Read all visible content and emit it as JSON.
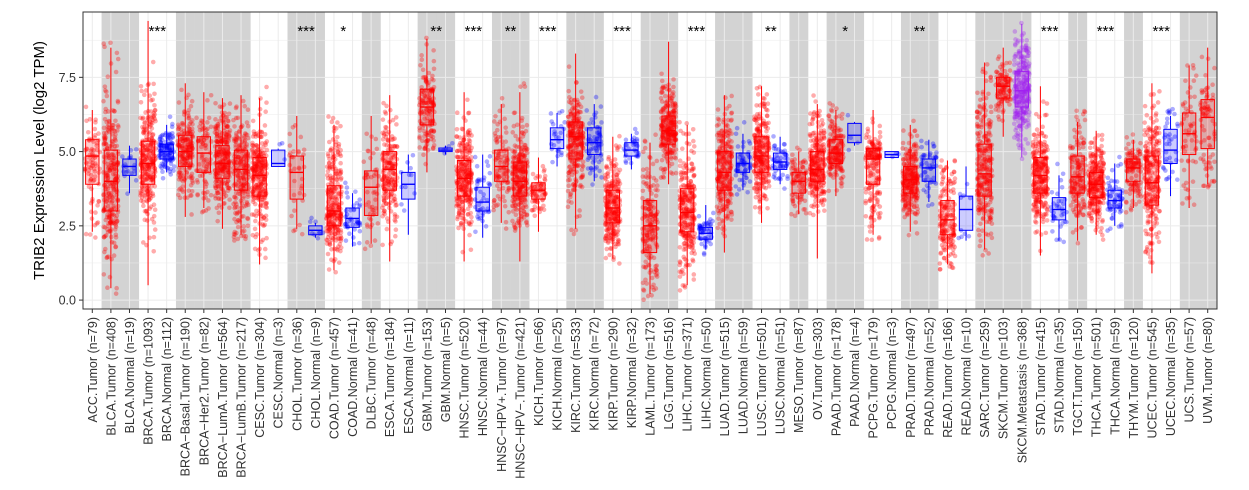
{
  "chart_data": {
    "type": "box",
    "title": "",
    "xlabel": "",
    "ylabel": "TRIB2 Expression Level (log2 TPM)",
    "ylim": [
      -0.3,
      9.7
    ],
    "yticks": [
      0.0,
      2.5,
      5.0,
      7.5
    ],
    "ytick_labels": [
      "0.0",
      "2.5",
      "5.0",
      "7.5"
    ],
    "grid": true,
    "legend": "none",
    "colors": {
      "Tumor": "#ff0000",
      "Normal": "#0000ff",
      "Metastasis": "#a020f0",
      "shade": "#d3d3d3"
    },
    "categories": [
      {
        "label": "ACC.Tumor (n=79)",
        "group": "Tumor",
        "median": 4.85,
        "q1": 3.9,
        "q3": 5.4,
        "lo": 2.3,
        "hi": 6.4,
        "shade": false,
        "sig": ""
      },
      {
        "label": "BLCA.Tumor (n=408)",
        "group": "Tumor",
        "median": 4.0,
        "q1": 3.0,
        "q3": 5.05,
        "lo": 0.4,
        "hi": 8.5,
        "shade": true,
        "sig": ""
      },
      {
        "label": "BLCA.Normal (n=19)",
        "group": "Normal",
        "median": 4.5,
        "q1": 4.2,
        "q3": 4.75,
        "lo": 3.6,
        "hi": 5.2,
        "shade": true,
        "sig": ""
      },
      {
        "label": "BRCA.Tumor (n=1093)",
        "group": "Tumor",
        "median": 4.6,
        "q1": 3.9,
        "q3": 5.35,
        "lo": 0.5,
        "hi": 9.4,
        "shade": false,
        "sig": "***"
      },
      {
        "label": "BRCA.Normal (n=112)",
        "group": "Normal",
        "median": 5.0,
        "q1": 4.75,
        "q3": 5.25,
        "lo": 4.3,
        "hi": 5.9,
        "shade": false,
        "sig": ""
      },
      {
        "label": "BRCA−Basal.Tumor (n=190)",
        "group": "Tumor",
        "median": 5.0,
        "q1": 4.5,
        "q3": 5.55,
        "lo": 2.8,
        "hi": 7.3,
        "shade": true,
        "sig": ""
      },
      {
        "label": "BRCA−Her2.Tumor (n=82)",
        "group": "Tumor",
        "median": 4.95,
        "q1": 4.3,
        "q3": 5.5,
        "lo": 3.1,
        "hi": 7.0,
        "shade": true,
        "sig": ""
      },
      {
        "label": "BRCA−LumA.Tumor (n=564)",
        "group": "Tumor",
        "median": 4.6,
        "q1": 4.1,
        "q3": 5.2,
        "lo": 2.4,
        "hi": 6.8,
        "shade": true,
        "sig": ""
      },
      {
        "label": "BRCA−LumB.Tumor (n=217)",
        "group": "Tumor",
        "median": 4.4,
        "q1": 3.7,
        "q3": 5.05,
        "lo": 2.2,
        "hi": 6.9,
        "shade": true,
        "sig": ""
      },
      {
        "label": "CESC.Tumor (n=304)",
        "group": "Tumor",
        "median": 4.2,
        "q1": 3.5,
        "q3": 4.8,
        "lo": 1.2,
        "hi": 6.8,
        "shade": false,
        "sig": ""
      },
      {
        "label": "CESC.Normal (n=3)",
        "group": "Normal",
        "median": 4.6,
        "q1": 4.5,
        "q3": 5.05,
        "lo": 4.5,
        "hi": 5.1,
        "shade": false,
        "sig": ""
      },
      {
        "label": "CHOL.Tumor (n=36)",
        "group": "Tumor",
        "median": 4.3,
        "q1": 3.4,
        "q3": 4.85,
        "lo": 2.4,
        "hi": 6.2,
        "shade": true,
        "sig": "***"
      },
      {
        "label": "CHOL.Normal (n=9)",
        "group": "Normal",
        "median": 2.35,
        "q1": 2.2,
        "q3": 2.5,
        "lo": 2.1,
        "hi": 2.6,
        "shade": true,
        "sig": ""
      },
      {
        "label": "COAD.Tumor (n=457)",
        "group": "Tumor",
        "median": 3.0,
        "q1": 2.5,
        "q3": 3.85,
        "lo": 1.0,
        "hi": 5.9,
        "shade": false,
        "sig": "*"
      },
      {
        "label": "COAD.Normal (n=41)",
        "group": "Normal",
        "median": 2.75,
        "q1": 2.45,
        "q3": 3.1,
        "lo": 1.8,
        "hi": 3.6,
        "shade": false,
        "sig": ""
      },
      {
        "label": "DLBC.Tumor (n=48)",
        "group": "Tumor",
        "median": 3.8,
        "q1": 2.85,
        "q3": 4.35,
        "lo": 1.9,
        "hi": 6.2,
        "shade": true,
        "sig": ""
      },
      {
        "label": "ESCA.Tumor (n=184)",
        "group": "Tumor",
        "median": 4.4,
        "q1": 3.7,
        "q3": 5.0,
        "lo": 1.3,
        "hi": 6.9,
        "shade": false,
        "sig": ""
      },
      {
        "label": "ESCA.Normal (n=11)",
        "group": "Normal",
        "median": 3.9,
        "q1": 3.4,
        "q3": 4.3,
        "lo": 2.2,
        "hi": 4.9,
        "shade": false,
        "sig": ""
      },
      {
        "label": "GBM.Tumor (n=153)",
        "group": "Tumor",
        "median": 6.5,
        "q1": 5.9,
        "q3": 7.1,
        "lo": 4.3,
        "hi": 8.8,
        "shade": true,
        "sig": "**"
      },
      {
        "label": "GBM.Normal (n=5)",
        "group": "Normal",
        "median": 5.05,
        "q1": 5.0,
        "q3": 5.12,
        "lo": 4.9,
        "hi": 5.2,
        "shade": true,
        "sig": ""
      },
      {
        "label": "HNSC.Tumor (n=520)",
        "group": "Tumor",
        "median": 4.1,
        "q1": 3.5,
        "q3": 4.7,
        "lo": 1.3,
        "hi": 7.0,
        "shade": false,
        "sig": "***"
      },
      {
        "label": "HNSC.Normal (n=44)",
        "group": "Normal",
        "median": 3.3,
        "q1": 3.0,
        "q3": 3.8,
        "lo": 2.1,
        "hi": 4.9,
        "shade": false,
        "sig": ""
      },
      {
        "label": "HNSC−HPV+.Tumor (n=97)",
        "group": "Tumor",
        "median": 4.5,
        "q1": 4.0,
        "q3": 5.05,
        "lo": 2.6,
        "hi": 6.6,
        "shade": true,
        "sig": "**"
      },
      {
        "label": "HNSC−HPV−.Tumor (n=421)",
        "group": "Tumor",
        "median": 4.0,
        "q1": 3.5,
        "q3": 4.65,
        "lo": 1.3,
        "hi": 7.0,
        "shade": true,
        "sig": ""
      },
      {
        "label": "KICH.Tumor (n=66)",
        "group": "Tumor",
        "median": 3.7,
        "q1": 3.4,
        "q3": 3.95,
        "lo": 2.3,
        "hi": 4.8,
        "shade": false,
        "sig": "***"
      },
      {
        "label": "KICH.Normal (n=25)",
        "group": "Normal",
        "median": 5.4,
        "q1": 5.1,
        "q3": 5.8,
        "lo": 4.5,
        "hi": 6.3,
        "shade": false,
        "sig": ""
      },
      {
        "label": "KIRC.Tumor (n=533)",
        "group": "Tumor",
        "median": 5.5,
        "q1": 4.75,
        "q3": 6.0,
        "lo": 2.4,
        "hi": 8.3,
        "shade": true,
        "sig": ""
      },
      {
        "label": "KIRC.Normal (n=72)",
        "group": "Normal",
        "median": 5.3,
        "q1": 4.9,
        "q3": 5.8,
        "lo": 4.0,
        "hi": 6.6,
        "shade": true,
        "sig": ""
      },
      {
        "label": "KIRP.Tumor (n=290)",
        "group": "Tumor",
        "median": 3.1,
        "q1": 2.6,
        "q3": 3.7,
        "lo": 1.4,
        "hi": 5.5,
        "shade": false,
        "sig": "***"
      },
      {
        "label": "KIRP.Normal (n=32)",
        "group": "Normal",
        "median": 5.05,
        "q1": 4.85,
        "q3": 5.3,
        "lo": 4.4,
        "hi": 5.6,
        "shade": false,
        "sig": ""
      },
      {
        "label": "LAML.Tumor (n=173)",
        "group": "Tumor",
        "median": 2.5,
        "q1": 1.6,
        "q3": 3.35,
        "lo": 0.2,
        "hi": 5.3,
        "shade": true,
        "sig": ""
      },
      {
        "label": "LGG.Tumor (n=516)",
        "group": "Tumor",
        "median": 5.7,
        "q1": 5.25,
        "q3": 6.2,
        "lo": 3.9,
        "hi": 8.7,
        "shade": true,
        "sig": ""
      },
      {
        "label": "LIHC.Tumor (n=371)",
        "group": "Tumor",
        "median": 2.95,
        "q1": 2.3,
        "q3": 3.75,
        "lo": 0.5,
        "hi": 5.9,
        "shade": false,
        "sig": "***"
      },
      {
        "label": "LIHC.Normal (n=50)",
        "group": "Normal",
        "median": 2.25,
        "q1": 2.05,
        "q3": 2.45,
        "lo": 1.7,
        "hi": 3.2,
        "shade": false,
        "sig": ""
      },
      {
        "label": "LUAD.Tumor (n=515)",
        "group": "Tumor",
        "median": 4.3,
        "q1": 3.7,
        "q3": 5.0,
        "lo": 1.6,
        "hi": 6.9,
        "shade": true,
        "sig": ""
      },
      {
        "label": "LUAD.Normal (n=59)",
        "group": "Normal",
        "median": 4.6,
        "q1": 4.3,
        "q3": 4.95,
        "lo": 3.7,
        "hi": 5.6,
        "shade": true,
        "sig": ""
      },
      {
        "label": "LUSC.Tumor (n=501)",
        "group": "Tumor",
        "median": 4.85,
        "q1": 4.3,
        "q3": 5.5,
        "lo": 2.6,
        "hi": 7.2,
        "shade": false,
        "sig": "**"
      },
      {
        "label": "LUSC.Normal (n=51)",
        "group": "Normal",
        "median": 4.65,
        "q1": 4.4,
        "q3": 4.95,
        "lo": 3.9,
        "hi": 5.5,
        "shade": false,
        "sig": ""
      },
      {
        "label": "MESO.Tumor (n=87)",
        "group": "Tumor",
        "median": 4.0,
        "q1": 3.6,
        "q3": 4.3,
        "lo": 2.9,
        "hi": 5.0,
        "shade": true,
        "sig": ""
      },
      {
        "label": "OV.Tumor (n=303)",
        "group": "Tumor",
        "median": 4.4,
        "q1": 4.0,
        "q3": 5.0,
        "lo": 1.4,
        "hi": 6.6,
        "shade": false,
        "sig": ""
      },
      {
        "label": "PAAD.Tumor (n=178)",
        "group": "Tumor",
        "median": 4.95,
        "q1": 4.6,
        "q3": 5.4,
        "lo": 3.5,
        "hi": 6.4,
        "shade": true,
        "sig": "*"
      },
      {
        "label": "PAAD.Normal (n=4)",
        "group": "Normal",
        "median": 5.55,
        "q1": 5.3,
        "q3": 5.95,
        "lo": 5.2,
        "hi": 6.0,
        "shade": true,
        "sig": ""
      },
      {
        "label": "PCPG.Tumor (n=179)",
        "group": "Tumor",
        "median": 4.75,
        "q1": 3.9,
        "q3": 5.1,
        "lo": 2.2,
        "hi": 6.4,
        "shade": false,
        "sig": ""
      },
      {
        "label": "PCPG.Normal (n=3)",
        "group": "Normal",
        "median": 4.9,
        "q1": 4.8,
        "q3": 5.0,
        "lo": 4.8,
        "hi": 5.0,
        "shade": false,
        "sig": ""
      },
      {
        "label": "PRAD.Tumor (n=497)",
        "group": "Tumor",
        "median": 4.05,
        "q1": 3.6,
        "q3": 4.5,
        "lo": 2.3,
        "hi": 5.9,
        "shade": true,
        "sig": "**"
      },
      {
        "label": "PRAD.Normal (n=52)",
        "group": "Normal",
        "median": 4.45,
        "q1": 4.0,
        "q3": 4.75,
        "lo": 3.3,
        "hi": 5.4,
        "shade": true,
        "sig": ""
      },
      {
        "label": "READ.Tumor (n=166)",
        "group": "Tumor",
        "median": 2.7,
        "q1": 2.2,
        "q3": 3.35,
        "lo": 1.2,
        "hi": 4.7,
        "shade": false,
        "sig": ""
      },
      {
        "label": "READ.Normal (n=10)",
        "group": "Normal",
        "median": 3.05,
        "q1": 2.35,
        "q3": 3.5,
        "lo": 2.0,
        "hi": 4.5,
        "shade": false,
        "sig": ""
      },
      {
        "label": "SARC.Tumor (n=259)",
        "group": "Tumor",
        "median": 4.25,
        "q1": 3.5,
        "q3": 5.25,
        "lo": 1.7,
        "hi": 8.0,
        "shade": true,
        "sig": ""
      },
      {
        "label": "SKCM.Tumor (n=103)",
        "group": "Tumor",
        "median": 7.2,
        "q1": 6.8,
        "q3": 7.5,
        "lo": 5.5,
        "hi": 8.5,
        "shade": true,
        "sig": ""
      },
      {
        "label": "SKCM.Metastasis (n=368)",
        "group": "Metastasis",
        "median": 7.05,
        "q1": 6.5,
        "q3": 7.7,
        "lo": 4.8,
        "hi": 9.3,
        "shade": true,
        "sig": ""
      },
      {
        "label": "STAD.Tumor (n=415)",
        "group": "Tumor",
        "median": 4.2,
        "q1": 3.6,
        "q3": 4.8,
        "lo": 1.5,
        "hi": 7.2,
        "shade": false,
        "sig": "***"
      },
      {
        "label": "STAD.Normal (n=35)",
        "group": "Normal",
        "median": 3.05,
        "q1": 2.7,
        "q3": 3.45,
        "lo": 2.0,
        "hi": 4.2,
        "shade": false,
        "sig": ""
      },
      {
        "label": "TGCT.Tumor (n=150)",
        "group": "Tumor",
        "median": 4.15,
        "q1": 3.6,
        "q3": 4.85,
        "lo": 2.0,
        "hi": 6.0,
        "shade": true,
        "sig": ""
      },
      {
        "label": "THCA.Tumor (n=501)",
        "group": "Tumor",
        "median": 3.9,
        "q1": 3.45,
        "q3": 4.3,
        "lo": 2.2,
        "hi": 5.7,
        "shade": false,
        "sig": "***"
      },
      {
        "label": "THCA.Normal (n=59)",
        "group": "Normal",
        "median": 3.35,
        "q1": 3.1,
        "q3": 3.7,
        "lo": 2.5,
        "hi": 4.6,
        "shade": false,
        "sig": ""
      },
      {
        "label": "THYM.Tumor (n=120)",
        "group": "Tumor",
        "median": 4.45,
        "q1": 4.0,
        "q3": 4.75,
        "lo": 3.1,
        "hi": 5.4,
        "shade": true,
        "sig": ""
      },
      {
        "label": "UCEC.Tumor (n=545)",
        "group": "Tumor",
        "median": 3.95,
        "q1": 3.2,
        "q3": 4.85,
        "lo": 0.9,
        "hi": 7.3,
        "shade": false,
        "sig": "***"
      },
      {
        "label": "UCEC.Normal (n=35)",
        "group": "Normal",
        "median": 5.05,
        "q1": 4.6,
        "q3": 5.75,
        "lo": 3.5,
        "hi": 6.2,
        "shade": false,
        "sig": ""
      },
      {
        "label": "UCS.Tumor (n=57)",
        "group": "Tumor",
        "median": 5.6,
        "q1": 4.9,
        "q3": 6.3,
        "lo": 3.1,
        "hi": 7.9,
        "shade": true,
        "sig": ""
      },
      {
        "label": "UVM.Tumor (n=80)",
        "group": "Tumor",
        "median": 6.15,
        "q1": 5.1,
        "q3": 6.75,
        "lo": 3.9,
        "hi": 8.5,
        "shade": true,
        "sig": ""
      }
    ]
  }
}
